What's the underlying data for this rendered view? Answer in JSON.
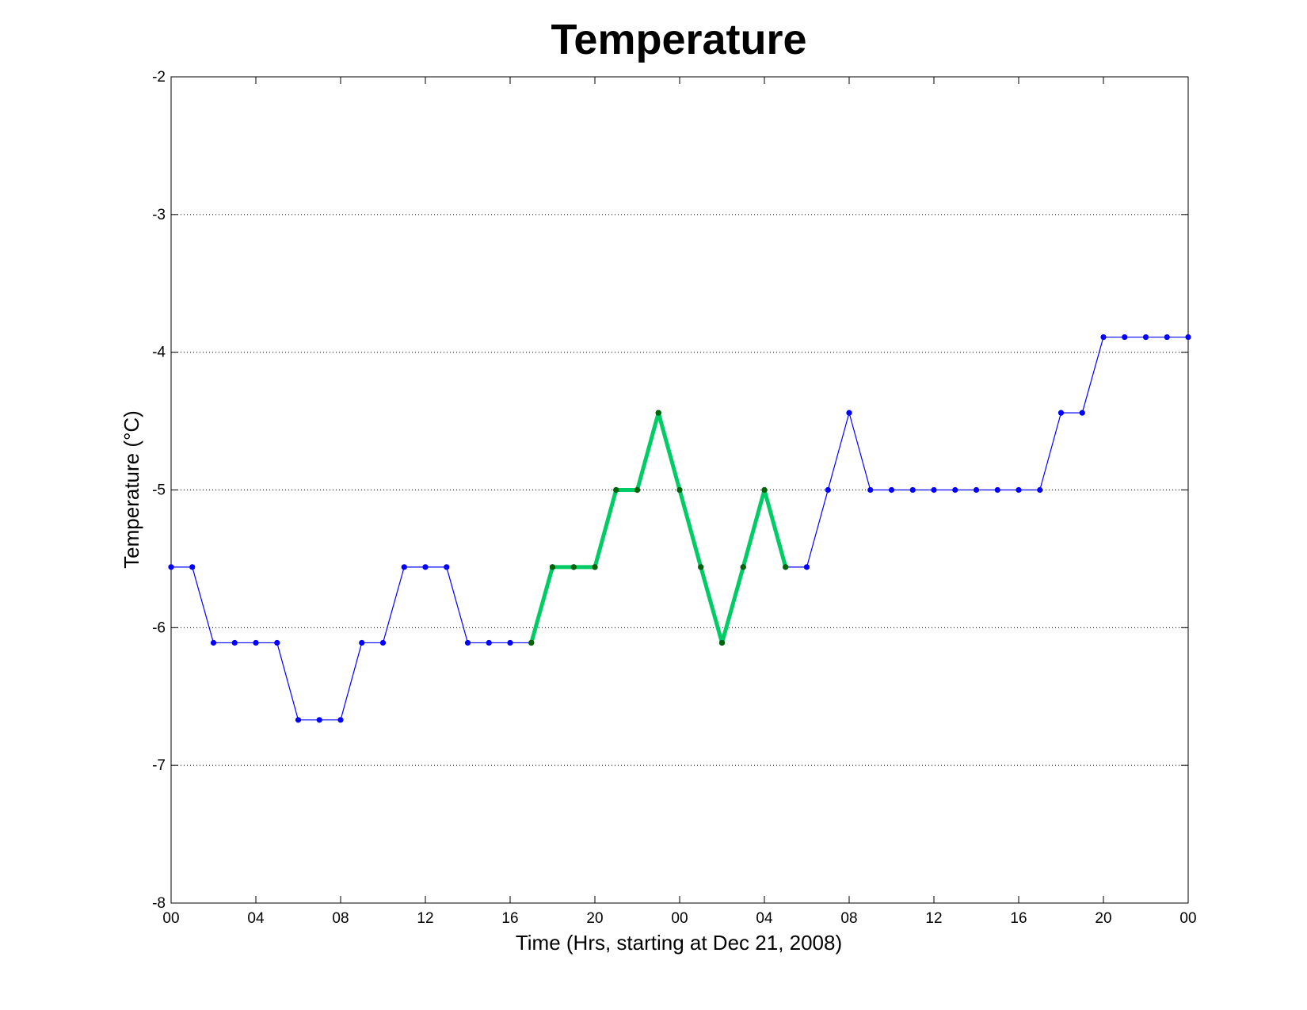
{
  "chart_data": {
    "type": "line",
    "title": "Temperature",
    "xlabel": "Time (Hrs, starting at Dec 21, 2008)",
    "ylabel": "Temperature (°C)",
    "x_unit": "hours",
    "xlim": [
      0,
      48
    ],
    "ylim": [
      -8,
      -2
    ],
    "yticks": [
      -8,
      -7,
      -6,
      -5,
      -4,
      -3,
      -2
    ],
    "xticks": [
      0,
      4,
      8,
      12,
      16,
      20,
      24,
      28,
      32,
      36,
      40,
      44,
      48
    ],
    "xtick_labels": [
      "00",
      "04",
      "08",
      "12",
      "16",
      "20",
      "00",
      "04",
      "08",
      "12",
      "16",
      "20",
      "00"
    ],
    "grid": "horizontal dotted",
    "legend": "none",
    "series": [
      {
        "color": "#0000ff",
        "style": "thin line with dot markers",
        "x": [
          0,
          1,
          2,
          3,
          4,
          5,
          6,
          7,
          8,
          9,
          10,
          11,
          12,
          13,
          14,
          15,
          16,
          17,
          18,
          19,
          20,
          21,
          22,
          23,
          24,
          25,
          26,
          27,
          28,
          29,
          30,
          31,
          32,
          33,
          34,
          35,
          36,
          37,
          38,
          39,
          40,
          41,
          42,
          43,
          44,
          45,
          46,
          47,
          48
        ],
        "values": [
          -5.56,
          -5.56,
          -6.11,
          -6.11,
          -6.11,
          -6.11,
          -6.67,
          -6.67,
          -6.67,
          -6.11,
          -6.11,
          -5.56,
          -5.56,
          -5.56,
          -6.11,
          -6.11,
          -6.11,
          -6.11,
          -5.56,
          -5.56,
          -5.56,
          -5.0,
          -5.0,
          -4.44,
          -5.0,
          -5.56,
          -6.11,
          -5.56,
          -5.0,
          -5.56,
          -5.56,
          -5.0,
          -4.44,
          -5.0,
          -5.0,
          -5.0,
          -5.0,
          -5.0,
          -5.0,
          -5.0,
          -5.0,
          -5.0,
          -4.44,
          -4.44,
          -3.89,
          -3.89,
          -3.89,
          -3.89,
          -3.89
        ]
      },
      {
        "color": "#00cc66",
        "marker_color": "#006600",
        "style": "thick highlighted segment",
        "x": [
          17,
          18,
          19,
          20,
          21,
          22,
          23,
          24,
          25,
          26,
          27,
          28,
          29
        ],
        "values": [
          -6.11,
          -5.56,
          -5.56,
          -5.56,
          -5.0,
          -5.0,
          -4.44,
          -5.0,
          -5.56,
          -6.11,
          -5.56,
          -5.0,
          -5.56
        ]
      }
    ]
  }
}
